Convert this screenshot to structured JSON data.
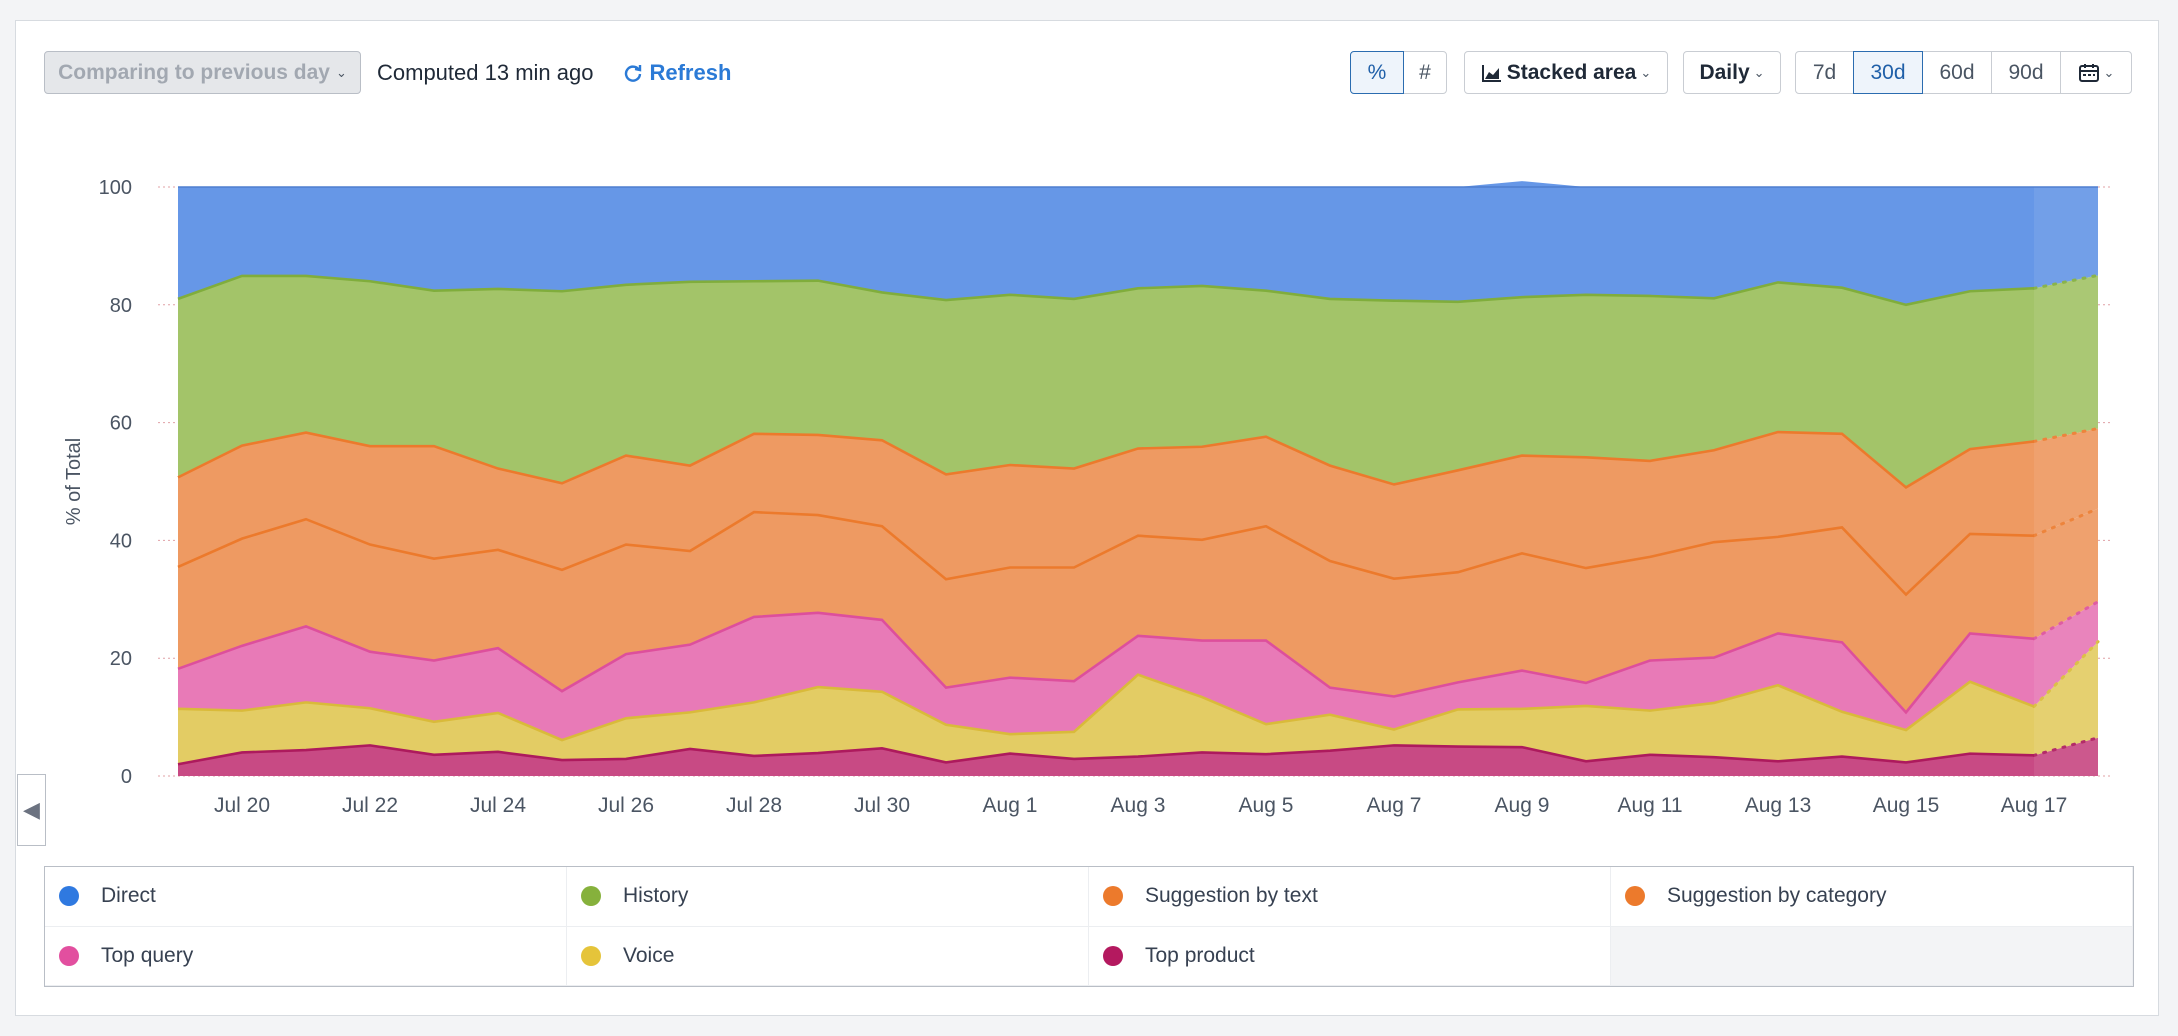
{
  "toolbar": {
    "compare_label": "Comparing to previous day",
    "computed_text": "Computed 13 min ago",
    "refresh_label": "Refresh",
    "mode_percent": "%",
    "mode_count": "#",
    "chart_type_label": "Stacked area",
    "interval_label": "Daily",
    "ranges": [
      "7d",
      "30d",
      "60d",
      "90d"
    ],
    "active_range": "30d"
  },
  "colors": {
    "direct": "#6697e7",
    "history": "#a3c469",
    "suggestion_text": "#ee9a62",
    "suggestion_category": "#ee9a62",
    "top_query": "#e87ab7",
    "voice": "#e3cc64",
    "top_product": "#c84a84",
    "line_history": "#80ad3c",
    "line_orange": "#ec7a2c",
    "line_pink": "#dd4f9c",
    "line_voice": "#d9ba3a",
    "line_product": "#ad1a5d"
  },
  "legend": [
    {
      "label": "Direct",
      "color": "#2f79e0"
    },
    {
      "label": "History",
      "color": "#86b13c"
    },
    {
      "label": "Suggestion by text",
      "color": "#ec7a2c"
    },
    {
      "label": "Suggestion by category",
      "color": "#ec7a2c"
    },
    {
      "label": "Top query",
      "color": "#e24f9f"
    },
    {
      "label": "Voice",
      "color": "#e5c43a"
    },
    {
      "label": "Top product",
      "color": "#b4195f"
    }
  ],
  "chart_data": {
    "type": "area",
    "stacked": true,
    "ylabel": "% of Total",
    "ylim": [
      0,
      100
    ],
    "yticks": [
      0,
      20,
      40,
      60,
      80,
      100
    ],
    "x": [
      "Jul 19",
      "Jul 20",
      "Jul 21",
      "Jul 22",
      "Jul 23",
      "Jul 24",
      "Jul 25",
      "Jul 26",
      "Jul 27",
      "Jul 28",
      "Jul 29",
      "Jul 30",
      "Jul 31",
      "Aug 1",
      "Aug 2",
      "Aug 3",
      "Aug 4",
      "Aug 5",
      "Aug 6",
      "Aug 7",
      "Aug 8",
      "Aug 9",
      "Aug 10",
      "Aug 11",
      "Aug 12",
      "Aug 13",
      "Aug 14",
      "Aug 15",
      "Aug 16",
      "Aug 17",
      "Aug 18"
    ],
    "xtick_labels": [
      "Jul 20",
      "Jul 22",
      "Jul 24",
      "Jul 26",
      "Jul 28",
      "Jul 30",
      "Aug 1",
      "Aug 3",
      "Aug 5",
      "Aug 7",
      "Aug 9",
      "Aug 11",
      "Aug 13",
      "Aug 15",
      "Aug 17"
    ],
    "partial_last_point": true,
    "series": [
      {
        "name": "Top product",
        "values": [
          2.0,
          4.0,
          4.4,
          5.2,
          3.6,
          4.1,
          2.7,
          2.9,
          4.6,
          3.4,
          3.9,
          4.7,
          2.3,
          3.8,
          2.9,
          3.3,
          4.0,
          3.7,
          4.3,
          5.2,
          5.0,
          4.9,
          2.5,
          3.6,
          3.2,
          2.5,
          3.3,
          2.3,
          3.8,
          3.5,
          6.5
        ]
      },
      {
        "name": "Voice",
        "values": [
          9.4,
          7.1,
          8.1,
          6.3,
          5.6,
          6.6,
          3.4,
          6.9,
          6.2,
          9.1,
          11.2,
          9.6,
          6.4,
          3.3,
          4.6,
          13.9,
          9.4,
          5.1,
          6.1,
          2.7,
          6.3,
          6.5,
          9.4,
          7.5,
          9.2,
          12.9,
          7.6,
          5.5,
          12.2,
          8.3,
          16.3
        ]
      },
      {
        "name": "Top query",
        "values": [
          6.8,
          11.0,
          12.9,
          9.6,
          10.4,
          11.0,
          8.3,
          10.9,
          11.5,
          14.5,
          12.6,
          12.2,
          6.3,
          9.6,
          8.6,
          6.6,
          9.6,
          14.2,
          4.6,
          5.6,
          4.6,
          6.5,
          3.9,
          8.5,
          7.7,
          8.8,
          11.8,
          3.0,
          8.2,
          11.5,
          6.8
        ]
      },
      {
        "name": "Suggestion by text",
        "values": [
          17.3,
          18.2,
          18.2,
          18.2,
          17.3,
          16.7,
          20.6,
          18.6,
          15.9,
          17.8,
          16.6,
          15.9,
          18.4,
          18.7,
          19.3,
          17.0,
          17.1,
          19.4,
          21.5,
          20.0,
          18.7,
          19.9,
          19.5,
          17.6,
          19.6,
          16.4,
          19.5,
          20.0,
          16.9,
          17.5,
          15.8
        ]
      },
      {
        "name": "Suggestion by category",
        "values": [
          15.2,
          15.8,
          14.7,
          16.7,
          19.1,
          13.8,
          14.7,
          15.1,
          14.5,
          13.3,
          13.6,
          14.6,
          17.8,
          17.4,
          16.8,
          14.8,
          15.8,
          15.2,
          16.2,
          16.0,
          17.3,
          16.6,
          18.8,
          16.3,
          15.6,
          17.8,
          15.9,
          18.2,
          14.4,
          16.0,
          13.6
        ]
      },
      {
        "name": "History",
        "values": [
          30.3,
          28.8,
          26.6,
          28.0,
          26.4,
          30.5,
          32.6,
          29.0,
          31.2,
          25.9,
          26.2,
          25.1,
          29.6,
          28.9,
          28.8,
          27.2,
          27.3,
          24.8,
          28.3,
          31.2,
          28.6,
          26.9,
          27.6,
          28.0,
          25.8,
          25.4,
          24.8,
          31.0,
          26.8,
          26.0,
          26.0
        ]
      },
      {
        "name": "Direct",
        "values": [
          19.0,
          15.1,
          15.1,
          16.0,
          17.6,
          17.3,
          17.7,
          16.6,
          16.1,
          16.0,
          15.9,
          17.9,
          19.2,
          18.3,
          19.0,
          17.2,
          16.8,
          17.6,
          19.0,
          19.3,
          19.5,
          19.7,
          18.3,
          18.5,
          18.9,
          16.2,
          17.1,
          20.0,
          17.7,
          17.2,
          15.0
        ]
      }
    ]
  }
}
